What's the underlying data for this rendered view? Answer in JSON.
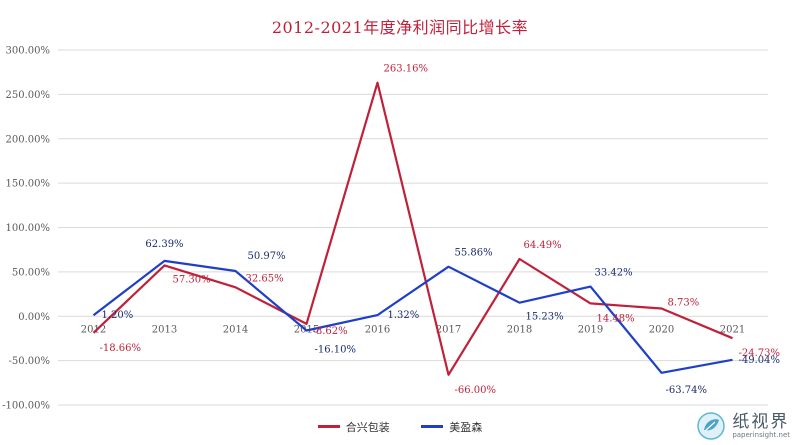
{
  "chart_data": {
    "type": "line",
    "title": "2012-2021年度净利润同比增长率",
    "categories": [
      "2012",
      "2013",
      "2014",
      "2015",
      "2016",
      "2017",
      "2018",
      "2019",
      "2020",
      "2021"
    ],
    "ylim": [
      -100,
      300
    ],
    "yticks": [
      -100,
      -50,
      0,
      50,
      100,
      150,
      200,
      250,
      300
    ],
    "ytick_labels": [
      "-100.00%",
      "-50.00%",
      "0.00%",
      "50.00%",
      "100.00%",
      "150.00%",
      "200.00%",
      "250.00%",
      "300.00%"
    ],
    "grid": true,
    "legend_position": "bottom",
    "series": [
      {
        "name": "合兴包装",
        "color": "#c0213a",
        "values": [
          -18.66,
          57.3,
          32.65,
          -8.62,
          263.16,
          -66.0,
          64.49,
          14.48,
          8.73,
          -24.73
        ],
        "labels": [
          "-18.66%",
          "57.30%",
          "32.65%",
          "-8.62%",
          "263.16%",
          "-66.00%",
          "64.49%",
          "14.48%",
          "8.73%",
          "-24.73%"
        ]
      },
      {
        "name": "美盈森",
        "color": "#1f3fc7",
        "values": [
          1.2,
          62.39,
          50.97,
          -16.1,
          1.32,
          55.86,
          15.23,
          33.42,
          -63.74,
          -49.04
        ],
        "labels": [
          "1.20%",
          "62.39%",
          "50.97%",
          "-16.10%",
          "1.32%",
          "55.86%",
          "15.23%",
          "33.42%",
          "-63.74%",
          "-49.04%"
        ]
      }
    ]
  },
  "watermark": {
    "name": "纸视界",
    "url": "paperinsight.net",
    "icon": "paper-leaf-logo-icon"
  }
}
